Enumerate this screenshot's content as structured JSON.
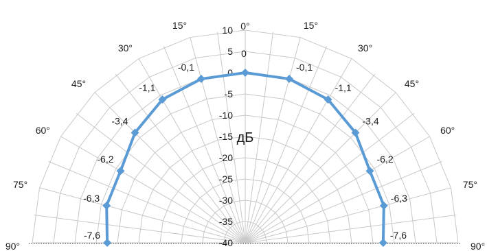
{
  "chart_data": {
    "type": "line",
    "subtype": "polar-half",
    "title": "",
    "unit_label": "дБ",
    "angle_labels": [
      {
        "text": "0°",
        "angle": 0
      },
      {
        "text": "15°",
        "angle": -15
      },
      {
        "text": "15°",
        "angle": 15
      },
      {
        "text": "30°",
        "angle": -30
      },
      {
        "text": "30°",
        "angle": 30
      },
      {
        "text": "45°",
        "angle": -45
      },
      {
        "text": "45°",
        "angle": 45
      },
      {
        "text": "60°",
        "angle": -60
      },
      {
        "text": "60°",
        "angle": 60
      },
      {
        "text": "75°",
        "angle": -75
      },
      {
        "text": "75°",
        "angle": 75
      },
      {
        "text": "90°",
        "angle": -90
      },
      {
        "text": "90°",
        "angle": 90
      }
    ],
    "radial_ticks": [
      10,
      5,
      0,
      -5,
      -10,
      -15,
      -20,
      -25,
      -30,
      -35,
      -40
    ],
    "rlim": [
      -40,
      10
    ],
    "grid": true,
    "angles": [
      -90,
      -75,
      -60,
      -45,
      -30,
      -15,
      0,
      15,
      30,
      45,
      60,
      75,
      90
    ],
    "series": [
      {
        "values": [
          -7.6,
          -6.3,
          -6.2,
          -3.4,
          -1.1,
          -0.1,
          0,
          -0.1,
          -1.1,
          -3.4,
          -6.2,
          -6.3,
          -7.6
        ],
        "labels": [
          "-7,6",
          "-6,3",
          "-6,2",
          "-3,4",
          "-1,1",
          "-0,1",
          "0",
          "-0,1",
          "-1,1",
          "-3,4",
          "-6,2",
          "-6,3",
          "-7,6"
        ],
        "color": "#5b9bd5"
      }
    ],
    "grid_color": "#c8c8c8"
  }
}
